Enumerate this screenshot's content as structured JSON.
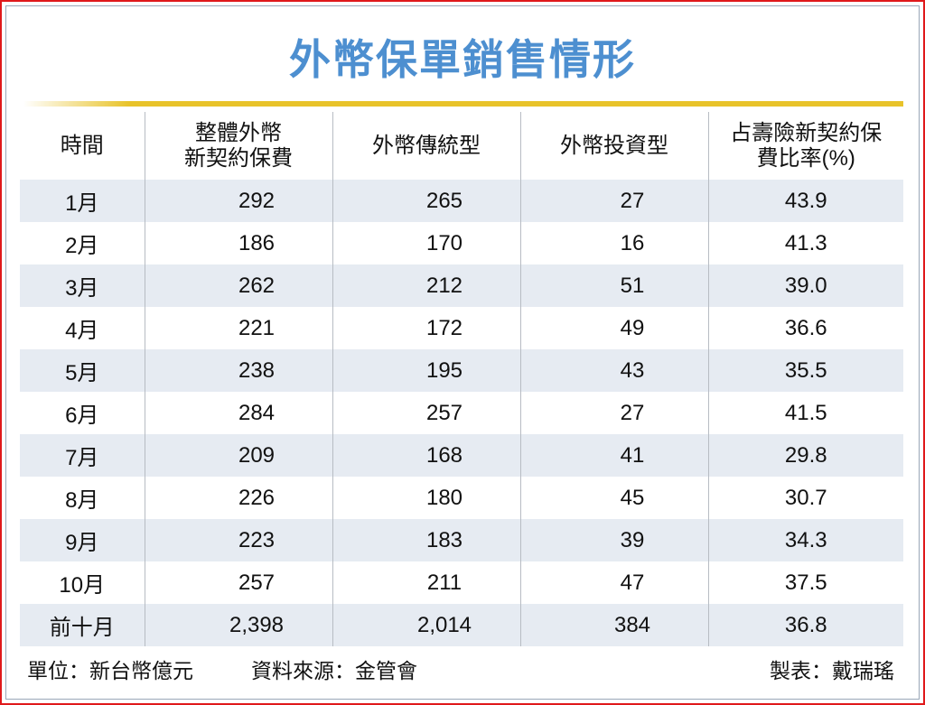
{
  "title": "外幣保單銷售情形",
  "chart_data": {
    "type": "table",
    "title": "外幣保單銷售情形",
    "columns": [
      "時間",
      "整體外幣\n新契約保費",
      "外幣傳統型",
      "外幣投資型",
      "占壽險新契約保\n費比率(%)"
    ],
    "header_lines": [
      [
        "時間"
      ],
      [
        "整體外幣",
        "新契約保費"
      ],
      [
        "外幣傳統型"
      ],
      [
        "外幣投資型"
      ],
      [
        "占壽險新契約保",
        "費比率(%)"
      ]
    ],
    "rows": [
      [
        "1月",
        "292",
        "265",
        "27",
        "43.9"
      ],
      [
        "2月",
        "186",
        "170",
        "16",
        "41.3"
      ],
      [
        "3月",
        "262",
        "212",
        "51",
        "39.0"
      ],
      [
        "4月",
        "221",
        "172",
        "49",
        "36.6"
      ],
      [
        "5月",
        "238",
        "195",
        "43",
        "35.5"
      ],
      [
        "6月",
        "284",
        "257",
        "27",
        "41.5"
      ],
      [
        "7月",
        "209",
        "168",
        "41",
        "29.8"
      ],
      [
        "8月",
        "226",
        "180",
        "45",
        "30.7"
      ],
      [
        "9月",
        "223",
        "183",
        "39",
        "34.3"
      ],
      [
        "10月",
        "257",
        "211",
        "47",
        "37.5"
      ],
      [
        "前十月",
        "2,398",
        "2,014",
        "384",
        "36.8"
      ]
    ]
  },
  "footer": {
    "unit": "單位：新台幣億元",
    "source": "資料來源：金管會",
    "author": "製表：戴瑞瑤"
  },
  "colors": {
    "title": "#4d8fd0",
    "rule": "#e8c32a",
    "row_shade": "#e6ebf2",
    "frame": "#e0191b"
  }
}
